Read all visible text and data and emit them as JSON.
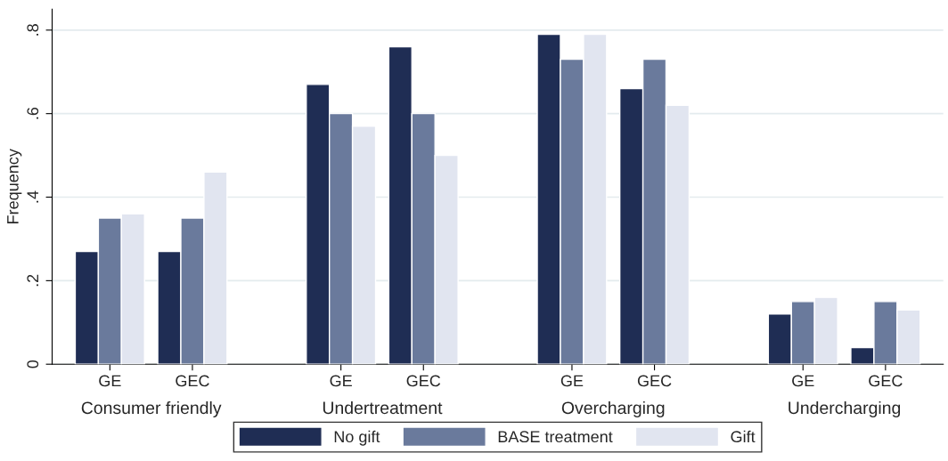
{
  "chart_data": {
    "type": "bar",
    "ylabel": "Frequency",
    "categories": [
      "GE",
      "GEC",
      "GE",
      "GEC",
      "GE",
      "GEC",
      "GE",
      "GEC"
    ],
    "annotations": [
      "Consumer friendly",
      "Undertreatment",
      "Overcharging",
      "Undercharging"
    ],
    "series": [
      {
        "name": "No gift",
        "color": "#1f2d54",
        "values": [
          0.27,
          0.27,
          0.67,
          0.76,
          0.79,
          0.66,
          0.12,
          0.04
        ]
      },
      {
        "name": "BASE treatment",
        "color": "#6a7a9c",
        "values": [
          0.35,
          0.35,
          0.6,
          0.6,
          0.73,
          0.73,
          0.15,
          0.15
        ]
      },
      {
        "name": "Gift",
        "color": "#e1e5f0",
        "values": [
          0.36,
          0.46,
          0.57,
          0.5,
          0.79,
          0.62,
          0.16,
          0.13
        ]
      }
    ],
    "ylim": [
      0,
      0.85
    ],
    "yticks": [
      {
        "value": 0,
        "label": "0"
      },
      {
        "value": 0.2,
        "label": ".2"
      },
      {
        "value": 0.4,
        "label": ".4"
      },
      {
        "value": 0.6,
        "label": ".6"
      },
      {
        "value": 0.8,
        "label": ".8"
      }
    ],
    "grid": "y",
    "legend": "bottom"
  }
}
